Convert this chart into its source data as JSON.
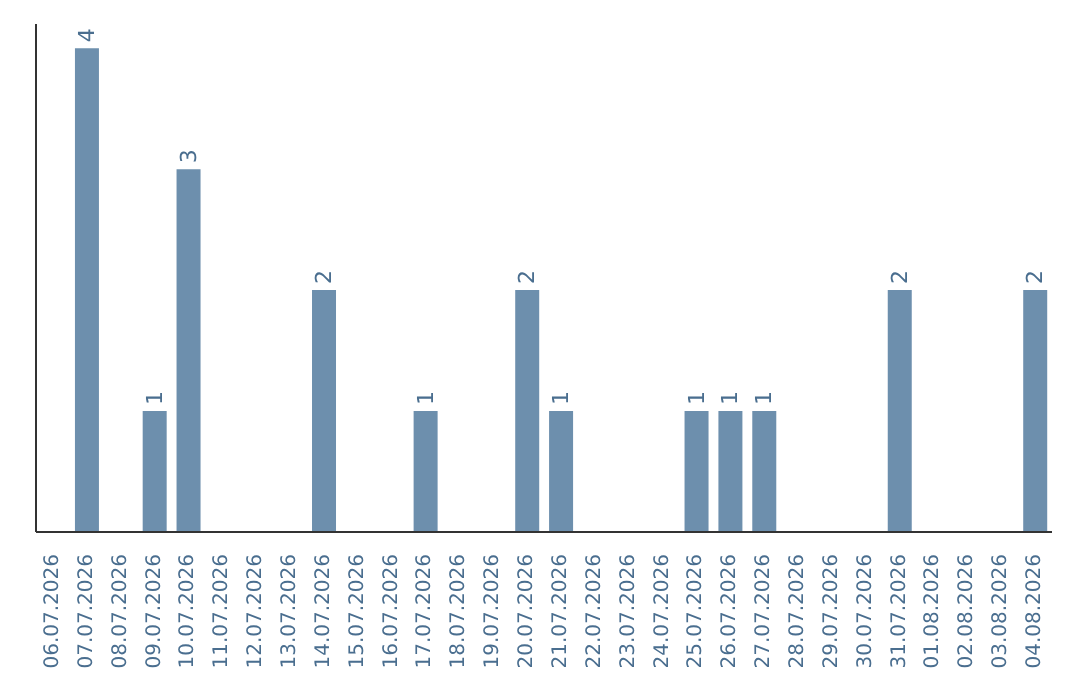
{
  "chart_data": {
    "type": "bar",
    "categories": [
      "06.07.2026",
      "07.07.2026",
      "08.07.2026",
      "09.07.2026",
      "10.07.2026",
      "11.07.2026",
      "12.07.2026",
      "13.07.2026",
      "14.07.2026",
      "15.07.2026",
      "16.07.2026",
      "17.07.2026",
      "18.07.2026",
      "19.07.2026",
      "20.07.2026",
      "21.07.2026",
      "22.07.2026",
      "23.07.2026",
      "24.07.2026",
      "25.07.2026",
      "26.07.2026",
      "27.07.2026",
      "28.07.2026",
      "29.07.2026",
      "30.07.2026",
      "31.07.2026",
      "01.08.2026",
      "02.08.2026",
      "03.08.2026",
      "04.08.2026"
    ],
    "values": [
      0,
      4,
      0,
      1,
      3,
      0,
      0,
      0,
      2,
      0,
      0,
      1,
      0,
      0,
      2,
      1,
      0,
      0,
      0,
      1,
      1,
      1,
      0,
      0,
      0,
      2,
      0,
      0,
      0,
      2
    ],
    "value_labels": [
      null,
      "4",
      null,
      "1",
      "3",
      null,
      null,
      null,
      "2",
      null,
      null,
      "1",
      null,
      null,
      "2",
      "1",
      null,
      null,
      null,
      "1",
      "1",
      "1",
      null,
      null,
      null,
      "2",
      null,
      null,
      null,
      "2"
    ],
    "color": "#6d8fad"
  }
}
